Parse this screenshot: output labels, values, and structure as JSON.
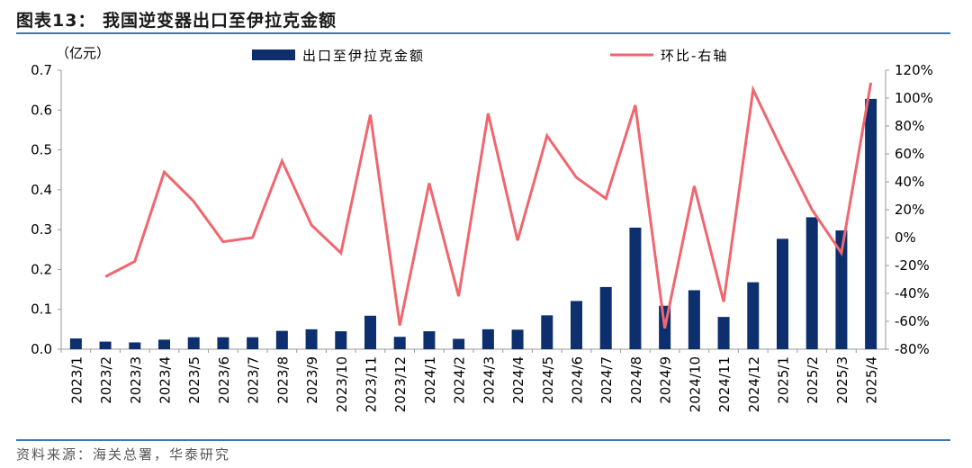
{
  "title": "图表13：  我国逆变器出口至伊拉克金额",
  "source": "资料来源：海关总署，华泰研究",
  "chart_data": {
    "type": "bar+line",
    "categories": [
      "2023/1",
      "2023/2",
      "2023/3",
      "2023/4",
      "2023/5",
      "2023/6",
      "2023/7",
      "2023/8",
      "2023/9",
      "2023/10",
      "2023/11",
      "2023/12",
      "2024/1",
      "2024/2",
      "2024/3",
      "2024/4",
      "2024/5",
      "2024/6",
      "2024/7",
      "2024/8",
      "2024/9",
      "2024/10",
      "2024/11",
      "2024/12",
      "2025/1",
      "2025/2",
      "2025/3",
      "2025/4"
    ],
    "y_unit_label": "（亿元）",
    "ylim": [
      0,
      0.7
    ],
    "yticks": [
      "0.0",
      "0.1",
      "0.2",
      "0.3",
      "0.4",
      "0.5",
      "0.6",
      "0.7"
    ],
    "y2lim": [
      -80,
      120
    ],
    "y2ticks": [
      "-80%",
      "-60%",
      "-40%",
      "-20%",
      "0%",
      "20%",
      "40%",
      "60%",
      "80%",
      "100%",
      "120%"
    ],
    "colors": {
      "bar": "#0d2f6e",
      "line": "#f0666e",
      "frame": "#3a78b8"
    },
    "series": [
      {
        "name": "出口至伊拉克金额",
        "kind": "bar",
        "axis": "left",
        "values": [
          0.027,
          0.019,
          0.017,
          0.024,
          0.03,
          0.03,
          0.03,
          0.046,
          0.05,
          0.045,
          0.084,
          0.031,
          0.045,
          0.026,
          0.05,
          0.049,
          0.085,
          0.121,
          0.156,
          0.305,
          0.109,
          0.148,
          0.081,
          0.168,
          0.277,
          0.331,
          0.298,
          0.628
        ]
      },
      {
        "name": "环比-右轴",
        "kind": "line",
        "axis": "right",
        "values": [
          null,
          -28,
          -17,
          47,
          26,
          -3,
          0,
          55,
          9,
          -11,
          88,
          -63,
          39,
          -42,
          89,
          -2,
          73,
          43,
          28,
          95,
          -65,
          37,
          -46,
          106,
          62,
          20,
          -11,
          111
        ]
      }
    ]
  }
}
